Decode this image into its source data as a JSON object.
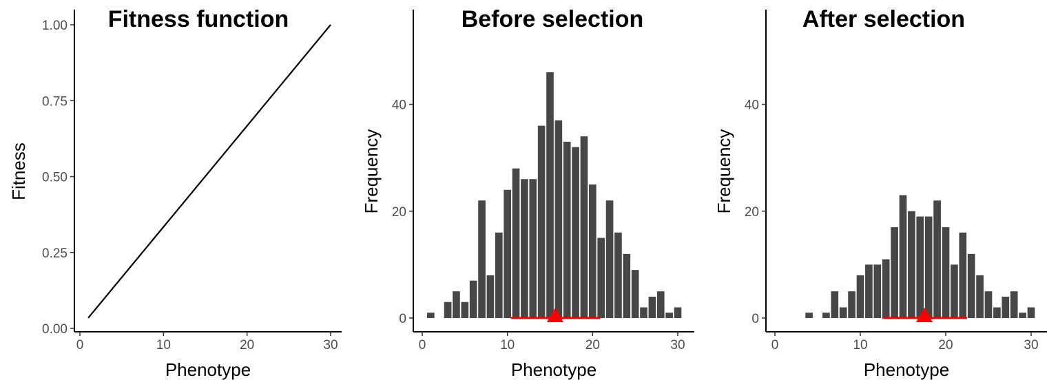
{
  "colors": {
    "bar": "#474747",
    "axis": "#000000",
    "marker": "#ff0000",
    "tick_text": "#4d4d4d"
  },
  "chart_data": [
    {
      "type": "line",
      "title": "Fitness function",
      "xlabel": "Phenotype",
      "ylabel": "Fitness",
      "xlim": [
        0,
        31
      ],
      "ylim": [
        0,
        1.0
      ],
      "x_ticks": [
        0,
        10,
        20,
        30
      ],
      "y_ticks": [
        0,
        0.25,
        0.5,
        0.75,
        1.0
      ],
      "y_tick_labels": [
        "0.00",
        "0.25",
        "0.50",
        "0.75",
        "1.00"
      ],
      "grid": false,
      "series": [
        {
          "x": [
            1,
            30
          ],
          "y": [
            0.0345,
            1.0
          ]
        }
      ]
    },
    {
      "type": "bar",
      "title": "Before selection",
      "xlabel": "Phenotype",
      "ylabel": "Frequency",
      "xlim": [
        0,
        31
      ],
      "ylim": [
        0,
        46
      ],
      "x_ticks": [
        0,
        10,
        20,
        30
      ],
      "y_ticks": [
        0,
        20,
        40
      ],
      "grid": false,
      "x": [
        1,
        2,
        3,
        4,
        5,
        6,
        7,
        8,
        9,
        10,
        11,
        12,
        13,
        14,
        15,
        16,
        17,
        18,
        19,
        20,
        21,
        22,
        23,
        24,
        25,
        26,
        27,
        28,
        29,
        30
      ],
      "values": [
        1,
        0,
        3,
        5,
        3,
        7,
        22,
        8,
        16,
        24,
        28,
        26,
        26,
        36,
        46,
        37,
        33,
        32,
        34,
        25,
        15,
        22,
        16,
        12,
        9,
        2,
        4,
        5,
        1,
        2
      ],
      "mean": 15.6,
      "range": [
        10.4,
        20.9
      ]
    },
    {
      "type": "bar",
      "title": "After selection",
      "xlabel": "Phenotype",
      "ylabel": "Frequency",
      "xlim": [
        0,
        31
      ],
      "ylim": [
        0,
        46
      ],
      "x_ticks": [
        0,
        10,
        20,
        30
      ],
      "y_ticks": [
        0,
        20,
        40
      ],
      "grid": false,
      "x": [
        1,
        2,
        3,
        4,
        5,
        6,
        7,
        8,
        9,
        10,
        11,
        12,
        13,
        14,
        15,
        16,
        17,
        18,
        19,
        20,
        21,
        22,
        23,
        24,
        25,
        26,
        27,
        28,
        29,
        30
      ],
      "values": [
        0,
        0,
        0,
        1,
        0,
        1,
        5,
        2,
        5,
        8,
        10,
        10,
        11,
        17,
        23,
        20,
        19,
        19,
        22,
        17,
        10,
        16,
        12,
        8,
        5,
        2,
        4,
        5,
        1,
        2
      ],
      "mean": 17.5,
      "range": [
        12.6,
        22.5
      ]
    }
  ]
}
